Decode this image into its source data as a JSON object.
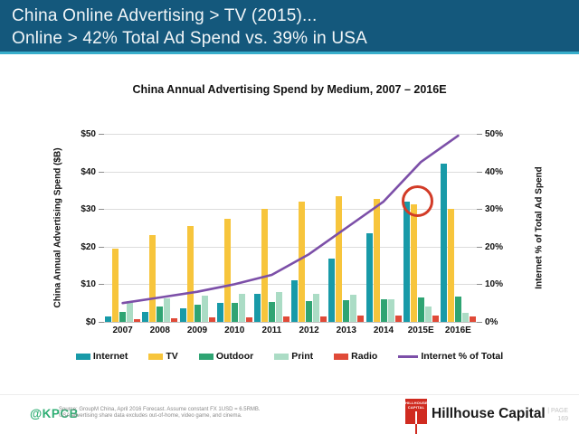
{
  "header": {
    "line1": "China Online Advertising > TV (2015)...",
    "line2": "Online > 42% Total Ad Spend vs. 39% in USA"
  },
  "chart_data": {
    "type": "bar",
    "title": "China Annual Advertising Spend by Medium, 2007 – 2016E",
    "categories": [
      "2007",
      "2008",
      "2009",
      "2010",
      "2011",
      "2012",
      "2013",
      "2014",
      "2015E",
      "2016E"
    ],
    "series": [
      {
        "name": "Internet",
        "color": "#189AA8",
        "values": [
          1.5,
          2.6,
          3.7,
          5.0,
          7.5,
          11.0,
          16.8,
          23.5,
          32.0,
          42.0
        ]
      },
      {
        "name": "TV",
        "color": "#F7C53C",
        "values": [
          19.5,
          23.0,
          25.5,
          27.5,
          30.0,
          32.0,
          33.3,
          32.6,
          31.3,
          30.0
        ]
      },
      {
        "name": "Outdoor",
        "color": "#2FA473",
        "values": [
          2.6,
          4.0,
          4.6,
          5.0,
          5.2,
          5.5,
          5.8,
          6.1,
          6.4,
          6.8
        ]
      },
      {
        "name": "Print",
        "color": "#ABDCC5",
        "values": [
          5.5,
          6.3,
          7.0,
          7.5,
          7.9,
          7.5,
          7.3,
          6.0,
          4.0,
          2.5
        ]
      },
      {
        "name": "Radio",
        "color": "#E04A38",
        "values": [
          0.8,
          1.0,
          1.2,
          1.3,
          1.4,
          1.5,
          1.6,
          1.7,
          1.6,
          1.4
        ]
      }
    ],
    "line_series": {
      "name": "Internet % of Total",
      "color": "#7C4FA8",
      "axis": "right",
      "values": [
        5,
        6.5,
        8,
        10,
        12.5,
        18,
        25,
        32,
        42.5,
        49.5
      ]
    },
    "left_axis": {
      "label": "China Annual Advertising Spend ($B)",
      "range": [
        0,
        50
      ],
      "ticks": [
        "$0",
        "$10",
        "$20",
        "$30",
        "$40",
        "$50"
      ]
    },
    "right_axis": {
      "label": "Internet % of Total Ad Spend",
      "range": [
        0,
        50
      ],
      "ticks": [
        "0%",
        "10%",
        "20%",
        "30%",
        "40%",
        "50%"
      ]
    },
    "grid": true,
    "legend_position": "bottom",
    "annotation": {
      "shape": "circle",
      "category": "2015E",
      "at_value": 32,
      "color": "#D23B27"
    }
  },
  "footer": {
    "kpcb": "@KPCB",
    "source_line1": "Source: GroupM China, April 2016 Forecast. Assume constant FX 1USD = 6.5RMB.",
    "source_line2": "USA advertising share data excludes out-of-home, video game, and cinema.",
    "brand": "Hillhouse Capital",
    "brand_logo_line1": "HILLHOUSE",
    "brand_logo_line2": "CAPITAL",
    "page_label": "|  PAGE",
    "page_number": "169"
  }
}
